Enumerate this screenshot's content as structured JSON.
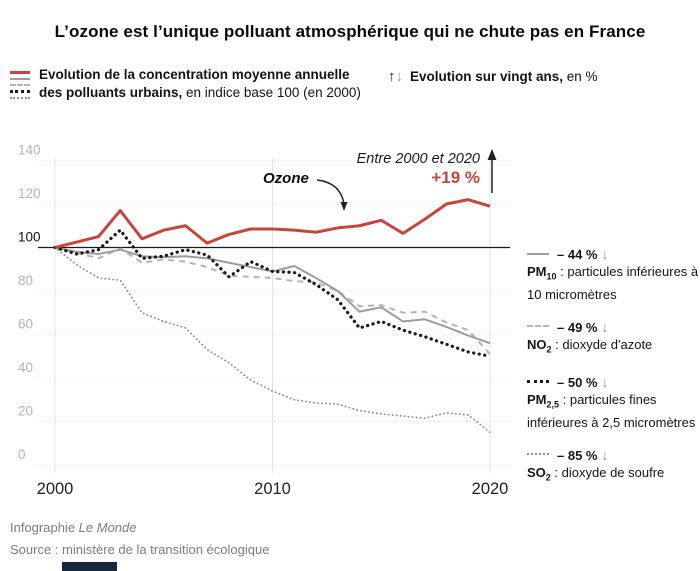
{
  "title": "L’ozone est l’unique polluant atmosphérique qui ne chute pas en France",
  "legend": {
    "main_bold1": "Evolution de la concentration moyenne annuelle",
    "main_bold2": "des polluants urbains,",
    "main_regular": " en indice base 100 (en 2000)",
    "arrow_up": "↑",
    "arrow_down": "↓",
    "right_bold": "Evolution sur vingt ans,",
    "right_regular": " en %"
  },
  "annotations": {
    "ozone_label": "Ozone",
    "range_label": "Entre 2000 et 2020",
    "ozone_change": "+19 %"
  },
  "side_legend": [
    {
      "change": "– 44 %",
      "arrow": "↓",
      "name": "PM",
      "sub": "10",
      "desc": " : particules inférieures à 10 micromètres",
      "swatch": "solid",
      "color": "#9c9c9c"
    },
    {
      "change": "– 49 %",
      "arrow": "↓",
      "name": "NO",
      "sub": "2",
      "desc": " : dioxyde d'azote",
      "swatch": "dashed",
      "color": "#b4b4b4"
    },
    {
      "change": "– 50 %",
      "arrow": "↓",
      "name": "PM",
      "sub": "2,5",
      "desc": " : particules fines inférieures à 2,5 micromètres",
      "swatch": "dot",
      "color": "#1c1c1c"
    },
    {
      "change": "– 85 %",
      "arrow": "↓",
      "name": "SO",
      "sub": "2",
      "desc": " : dioxyde de soufre",
      "swatch": "finedot",
      "color": "#8f8f8f"
    }
  ],
  "footer": {
    "credit_prefix": "Infographie ",
    "credit_name": "Le Monde",
    "source": "Source : ministère de la transition écologique"
  },
  "colors": {
    "ozone_red": "#c5463d",
    "baseline_black": "#1a1a1a",
    "grid_gray": "#d9d9d9",
    "bottom_bar": "#16293b"
  },
  "chart_data": {
    "type": "line",
    "x": [
      2000,
      2001,
      2002,
      2003,
      2004,
      2005,
      2006,
      2007,
      2008,
      2009,
      2010,
      2011,
      2012,
      2013,
      2014,
      2015,
      2016,
      2017,
      2018,
      2019,
      2020
    ],
    "xticks": [
      2000,
      2010,
      2020
    ],
    "yticks": [
      0,
      20,
      40,
      60,
      80,
      100,
      120,
      140
    ],
    "ylim": [
      0,
      145
    ],
    "baseline": 100,
    "grid": "dotted horizontal + vertical decade lines",
    "legend_position": "right",
    "series": [
      {
        "id": "so2",
        "name": "SO2 : dioxyde de soufre",
        "change_20y": "-85 %",
        "style": "fine-dot",
        "color": "#8f8f8f",
        "values": [
          100,
          92,
          86,
          85,
          70,
          66,
          63,
          53,
          47,
          39,
          34,
          30,
          28.5,
          28,
          25,
          23.5,
          22.5,
          21.5,
          24,
          23,
          15
        ]
      },
      {
        "id": "no2",
        "name": "NO2 : dioxyde d'azote",
        "change_20y": "-49 %",
        "style": "dashed",
        "color": "#b4b4b4",
        "values": [
          100,
          97.5,
          95,
          99.5,
          93,
          94.5,
          93.5,
          91,
          87,
          86.5,
          86,
          84.5,
          84,
          80,
          73,
          73.5,
          70,
          70.5,
          65.5,
          62,
          51
        ]
      },
      {
        "id": "pm10",
        "name": "PM10 : particules inférieures à 10 micromètres",
        "change_20y": "-44 %",
        "style": "solid",
        "color": "#9c9c9c",
        "values": [
          100,
          98,
          97,
          99,
          96,
          95.5,
          96,
          95,
          93,
          91,
          89,
          91.5,
          86,
          80,
          70.5,
          72.5,
          66,
          67,
          63.5,
          59.5,
          56
        ]
      },
      {
        "id": "pm25",
        "name": "PM2,5 : particules fines inférieures à 2,5 micromètres",
        "change_20y": "-50 %",
        "style": "dot",
        "color": "#1c1c1c",
        "values": [
          100,
          97,
          99,
          108,
          95,
          96,
          99,
          96.5,
          86.5,
          93.5,
          89,
          88.5,
          83,
          76,
          63,
          66,
          62,
          59,
          55.5,
          52,
          50
        ]
      },
      {
        "id": "ozone",
        "name": "Ozone",
        "change_20y": "+19 %",
        "style": "solid-thick",
        "color": "#c5463d",
        "values": [
          100,
          102.5,
          105,
          117,
          104,
          108,
          110,
          102,
          106,
          108.5,
          108.5,
          108,
          107,
          109,
          110,
          112.5,
          106.5,
          113,
          120,
          122,
          119
        ]
      }
    ]
  }
}
